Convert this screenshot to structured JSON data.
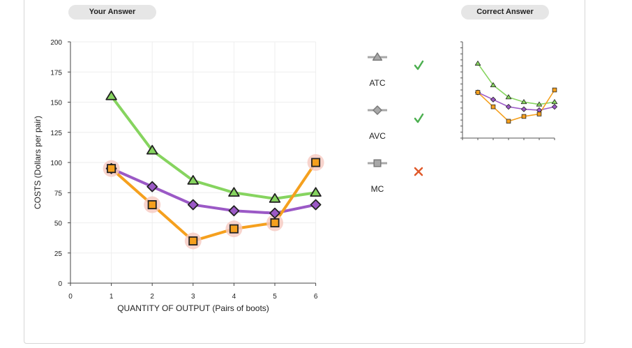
{
  "your_answer_label": "Your Answer",
  "correct_answer_label": "Correct Answer",
  "legend": [
    {
      "label": "ATC",
      "marker": "triangle",
      "status": "correct",
      "status_icon": "check-icon"
    },
    {
      "label": "AVC",
      "marker": "diamond",
      "status": "correct",
      "status_icon": "check-icon"
    },
    {
      "label": "MC",
      "marker": "square",
      "status": "incorrect",
      "status_icon": "x-icon"
    }
  ],
  "colors": {
    "atc": "#86d45f",
    "avc": "#9b59c6",
    "mc": "#f5a01e",
    "check": "#4caf50",
    "cross": "#e05a2b",
    "highlight": "#f6c9c0"
  },
  "chart_data": [
    {
      "id": "your-answer",
      "type": "line",
      "xlabel": "QUANTITY OF OUTPUT (Pairs of boots)",
      "ylabel": "COSTS (Dollars per pair)",
      "xlim": [
        0,
        6
      ],
      "ylim": [
        0,
        200
      ],
      "x_ticks": [
        0,
        1,
        2,
        3,
        4,
        5,
        6
      ],
      "y_ticks": [
        0,
        25,
        50,
        75,
        100,
        125,
        150,
        175,
        200
      ],
      "grid": true,
      "series": [
        {
          "name": "ATC",
          "marker": "triangle",
          "x": [
            1,
            2,
            3,
            4,
            5,
            6
          ],
          "values": [
            155,
            110,
            85,
            75,
            70,
            75
          ],
          "highlight": false
        },
        {
          "name": "AVC",
          "marker": "diamond",
          "x": [
            1,
            2,
            3,
            4,
            5,
            6
          ],
          "values": [
            95,
            80,
            65,
            60,
            58,
            65
          ],
          "highlight": false
        },
        {
          "name": "MC",
          "marker": "square",
          "x": [
            1,
            2,
            3,
            4,
            5,
            6
          ],
          "values": [
            95,
            65,
            35,
            45,
            50,
            100
          ],
          "highlight": true
        }
      ]
    },
    {
      "id": "correct-answer",
      "type": "line",
      "xlim": [
        0,
        6
      ],
      "ylim": [
        0,
        200
      ],
      "grid": false,
      "series": [
        {
          "name": "ATC",
          "marker": "triangle",
          "x": [
            1,
            2,
            3,
            4,
            5,
            6
          ],
          "values": [
            155,
            110,
            85,
            75,
            70,
            75
          ]
        },
        {
          "name": "AVC",
          "marker": "diamond",
          "x": [
            1,
            2,
            3,
            4,
            5,
            6
          ],
          "values": [
            95,
            80,
            65,
            60,
            58,
            65
          ]
        },
        {
          "name": "MC",
          "marker": "square",
          "x": [
            1,
            2,
            3,
            4,
            5,
            6
          ],
          "values": [
            95,
            65,
            35,
            45,
            50,
            100
          ]
        }
      ]
    }
  ]
}
